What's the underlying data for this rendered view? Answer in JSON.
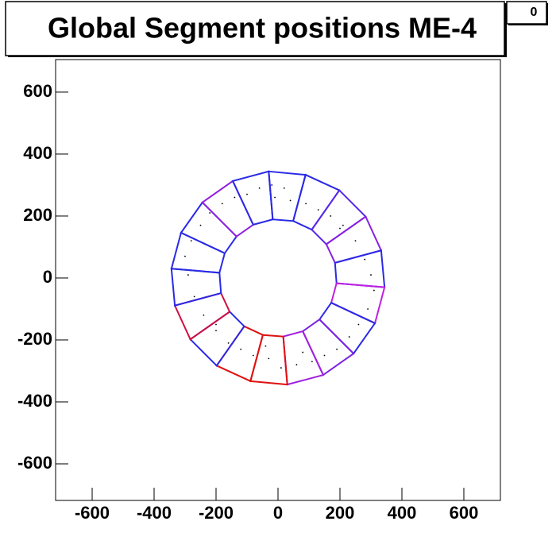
{
  "chart_data": {
    "type": "ring-scatter",
    "title": "Global Segment positions ME-4",
    "stat_box": "0",
    "xlim": [
      -718,
      718
    ],
    "ylim": [
      -718,
      705
    ],
    "xticks": [
      -600,
      -400,
      -200,
      0,
      200,
      400,
      600
    ],
    "yticks": [
      -600,
      -400,
      -200,
      0,
      200,
      400,
      600
    ],
    "outline": {
      "outer_x": [
        -30,
        89,
        198,
        283,
        333,
        344,
        313,
        244,
        146,
        30,
        -89,
        -198,
        -283,
        -333,
        -344,
        -313,
        -244,
        -146
      ],
      "outer_y": [
        344,
        333,
        283,
        198,
        89,
        -30,
        -146,
        -244,
        -313,
        -344,
        -333,
        -283,
        -198,
        -89,
        30,
        146,
        244,
        313
      ],
      "inner_x": [
        -17,
        49,
        109,
        156,
        184,
        189,
        172,
        134,
        80,
        17,
        -49,
        -109,
        -156,
        -184,
        -189,
        -172,
        -134,
        -80
      ],
      "inner_y": [
        189,
        184,
        156,
        109,
        49,
        -17,
        -80,
        -134,
        -172,
        -189,
        -184,
        -156,
        -109,
        -49,
        17,
        80,
        134,
        172
      ],
      "colors": [
        "#2a2ae6",
        "#2a2ae6",
        "#5a2ae6",
        "#8a20e0",
        "#2a2ae6",
        "#c020e0",
        "#2a2ae6",
        "#7a22e2",
        "#a020e0",
        "#e01010",
        "#e01010",
        "#2a2ae6",
        "#d01040",
        "#2a2ae6",
        "#2a2ae6",
        "#2a2ae6",
        "#9020e0",
        "#2a2ae6"
      ]
    },
    "points": {
      "color": "#000000",
      "x": [
        -10,
        40,
        90,
        130,
        170,
        210,
        250,
        280,
        300,
        310,
        290,
        260,
        230,
        190,
        150,
        110,
        60,
        10,
        -30,
        -80,
        -120,
        -160,
        -200,
        -240,
        -270,
        -290,
        -300,
        -280,
        -250,
        -220,
        -180,
        -140,
        -100,
        -60,
        -20,
        20,
        -40,
        80,
        200,
        -200
      ],
      "y": [
        260,
        250,
        240,
        220,
        200,
        170,
        120,
        60,
        10,
        -40,
        -100,
        -150,
        -190,
        -230,
        -250,
        -270,
        -280,
        -290,
        -260,
        -250,
        -230,
        -210,
        -170,
        -120,
        -60,
        10,
        70,
        120,
        170,
        210,
        240,
        260,
        270,
        290,
        300,
        290,
        -220,
        -240,
        160,
        -150
      ]
    }
  }
}
